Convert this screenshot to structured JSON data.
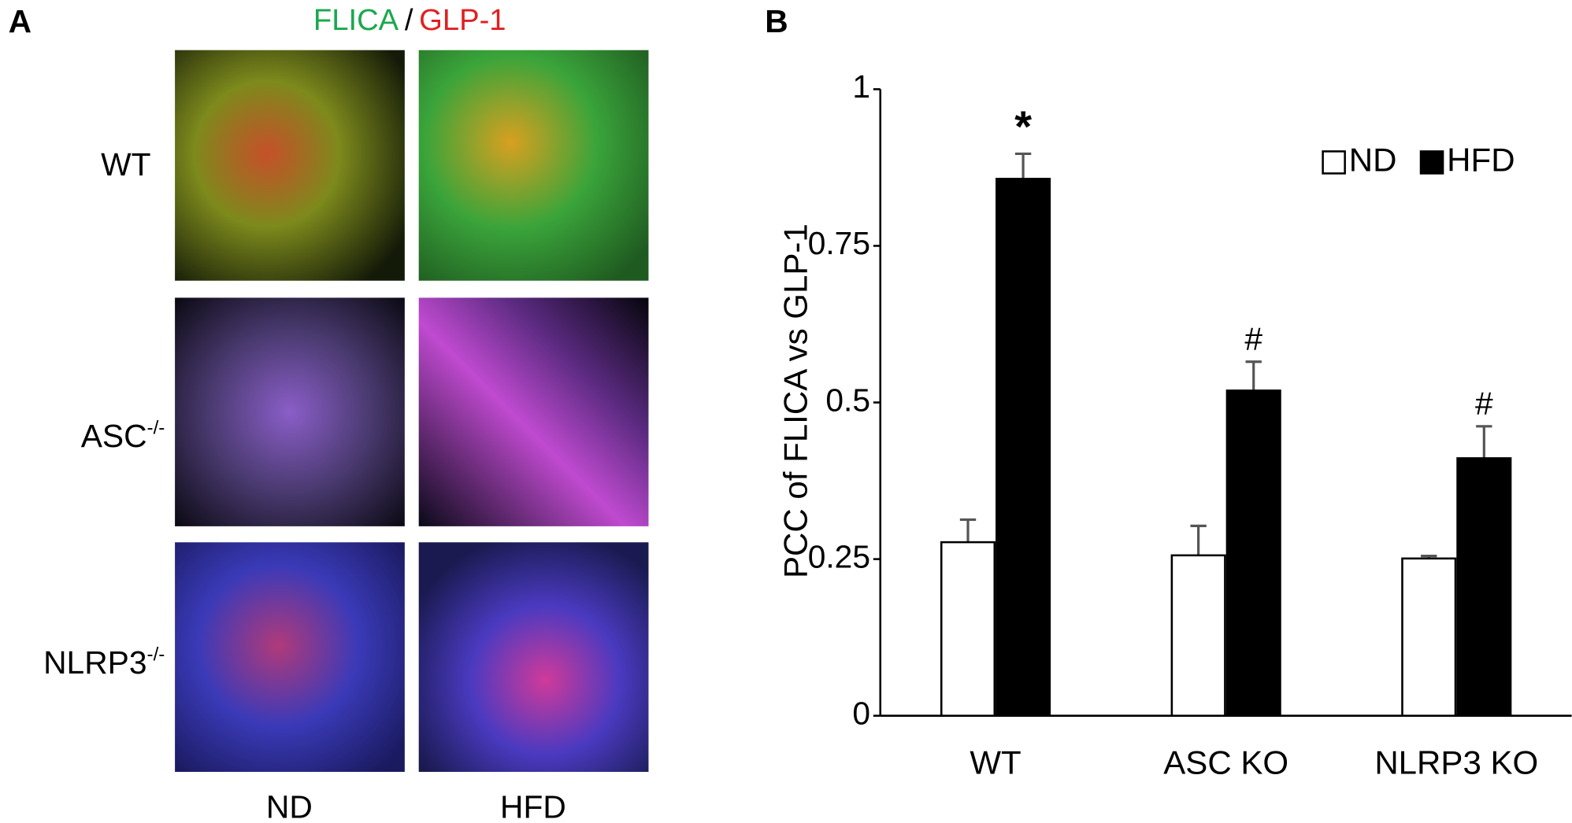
{
  "panel_a": {
    "label": "A",
    "title": {
      "flica": "FLICA",
      "separator": "/",
      "glp1": "GLP-1"
    },
    "rows": [
      {
        "name": "WT"
      },
      {
        "name": "ASC",
        "sup": "-/-"
      },
      {
        "name": "NLRP3",
        "sup": "-/-"
      }
    ],
    "columns": [
      "ND",
      "HFD"
    ]
  },
  "chart_data": {
    "type": "bar",
    "panel_label": "B",
    "y_label": "PCC of FLICA vs GLP-1",
    "categories": [
      "WT",
      "ASC KO",
      "NLRP3 KO"
    ],
    "series": [
      {
        "name": "ND",
        "color": "#ffffff",
        "values": [
          0.277,
          0.256,
          0.251
        ],
        "errors": [
          0.036,
          0.047,
          0.004
        ]
      },
      {
        "name": "HFD",
        "color": "#000000",
        "values": [
          0.857,
          0.519,
          0.411
        ],
        "errors": [
          0.04,
          0.046,
          0.051
        ],
        "value_annotations": [
          "*",
          "#",
          "#"
        ]
      }
    ],
    "ylim": [
      0,
      1
    ],
    "yticks": [
      0,
      0.25,
      0.5,
      0.75,
      1
    ],
    "legend": "upper right"
  }
}
